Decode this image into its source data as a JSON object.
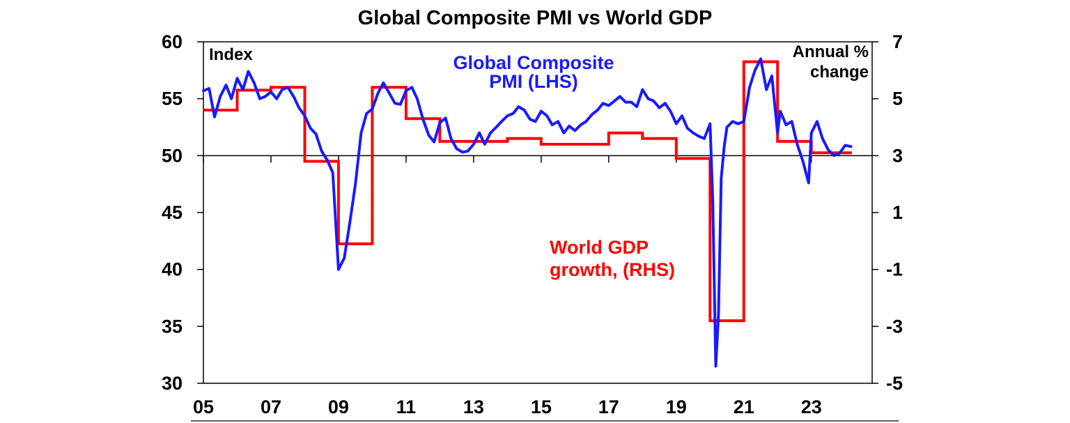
{
  "colors": {
    "pmi": "#1a1aff",
    "gdp": "#ff0000",
    "axis": "#000000"
  },
  "chart_data": {
    "type": "line",
    "title": "Global Composite PMI vs World GDP",
    "left_axis": {
      "label": "Index",
      "ylim": [
        30,
        60
      ],
      "ticks": [
        "60",
        "55",
        "50",
        "45",
        "40",
        "35",
        "30"
      ],
      "tick_values": [
        60,
        55,
        50,
        45,
        40,
        35,
        30
      ]
    },
    "right_axis": {
      "label_line1": "Annual %",
      "label_line2": "change",
      "ylim": [
        -5,
        7
      ],
      "ticks": [
        "7",
        "5",
        "3",
        "1",
        "-1",
        "-3",
        "-5"
      ],
      "tick_values": [
        7,
        5,
        3,
        1,
        -1,
        -3,
        -5
      ]
    },
    "x_axis": {
      "xlim": [
        2005,
        2024.8
      ],
      "ticks": [
        "05",
        "07",
        "09",
        "11",
        "13",
        "15",
        "17",
        "19",
        "21",
        "23"
      ],
      "tick_values": [
        2005,
        2007,
        2009,
        2011,
        2013,
        2015,
        2017,
        2019,
        2021,
        2023
      ]
    },
    "reference_line": 50,
    "series": [
      {
        "name": "Global Composite PMI (LHS)",
        "label_line1": "Global Composite",
        "label_line2": "PMI (LHS)",
        "axis": "left",
        "x": [
          2005.0,
          2005.17,
          2005.33,
          2005.5,
          2005.67,
          2005.83,
          2006.0,
          2006.17,
          2006.33,
          2006.5,
          2006.67,
          2006.83,
          2007.0,
          2007.17,
          2007.33,
          2007.5,
          2007.67,
          2007.83,
          2008.0,
          2008.17,
          2008.33,
          2008.5,
          2008.67,
          2008.83,
          2009.0,
          2009.17,
          2009.33,
          2009.5,
          2009.67,
          2009.83,
          2010.0,
          2010.17,
          2010.33,
          2010.5,
          2010.67,
          2010.83,
          2011.0,
          2011.17,
          2011.33,
          2011.5,
          2011.67,
          2011.83,
          2012.0,
          2012.17,
          2012.33,
          2012.5,
          2012.67,
          2012.83,
          2013.0,
          2013.17,
          2013.33,
          2013.5,
          2013.67,
          2013.83,
          2014.0,
          2014.17,
          2014.33,
          2014.5,
          2014.67,
          2014.83,
          2015.0,
          2015.17,
          2015.33,
          2015.5,
          2015.67,
          2015.83,
          2016.0,
          2016.17,
          2016.33,
          2016.5,
          2016.67,
          2016.83,
          2017.0,
          2017.17,
          2017.33,
          2017.5,
          2017.67,
          2017.83,
          2018.0,
          2018.17,
          2018.33,
          2018.5,
          2018.67,
          2018.83,
          2019.0,
          2019.17,
          2019.33,
          2019.5,
          2019.67,
          2019.83,
          2020.0,
          2020.08,
          2020.17,
          2020.25,
          2020.33,
          2020.42,
          2020.5,
          2020.67,
          2020.83,
          2021.0,
          2021.17,
          2021.33,
          2021.5,
          2021.67,
          2021.83,
          2022.0,
          2022.08,
          2022.25,
          2022.42,
          2022.58,
          2022.75,
          2022.92,
          2023.0,
          2023.17,
          2023.33,
          2023.5,
          2023.67,
          2023.83,
          2024.0,
          2024.17
        ],
        "values": [
          55.7,
          55.9,
          53.4,
          55.2,
          56.2,
          55.0,
          56.8,
          55.8,
          57.4,
          56.4,
          55.0,
          55.2,
          55.6,
          55.0,
          55.8,
          56.0,
          55.2,
          54.2,
          53.5,
          52.4,
          51.9,
          50.4,
          49.6,
          48.5,
          40.0,
          41.0,
          44.0,
          47.5,
          52.0,
          53.7,
          54.1,
          55.5,
          56.4,
          55.5,
          54.6,
          54.5,
          55.7,
          56.0,
          55.0,
          53.2,
          51.8,
          51.2,
          52.9,
          53.3,
          51.5,
          50.6,
          50.3,
          50.4,
          51.0,
          52.0,
          51.0,
          52.0,
          52.5,
          53.0,
          53.5,
          53.7,
          54.3,
          54.0,
          53.2,
          53.0,
          53.9,
          53.5,
          52.7,
          53.0,
          52.0,
          52.6,
          52.2,
          52.7,
          53.0,
          53.6,
          54.0,
          54.6,
          54.4,
          54.8,
          55.2,
          54.7,
          54.7,
          54.3,
          55.8,
          55.0,
          54.8,
          54.2,
          54.6,
          53.9,
          52.8,
          53.5,
          52.4,
          52.0,
          51.7,
          51.5,
          52.8,
          46.0,
          31.5,
          36.0,
          48.0,
          50.8,
          52.5,
          53.0,
          52.8,
          53.0,
          56.0,
          57.5,
          58.5,
          55.8,
          57.0,
          52.0,
          53.9,
          52.7,
          53.0,
          51.0,
          49.5,
          47.6,
          52.0,
          53.0,
          51.5,
          50.5,
          50.0,
          50.2,
          50.9,
          50.8
        ]
      },
      {
        "name": "World GDP growth, (RHS)",
        "label_line1": "World GDP",
        "label_line2": "growth, (RHS)",
        "axis": "right",
        "step": true,
        "x": [
          2005,
          2006,
          2007,
          2008,
          2009,
          2010,
          2011,
          2012,
          2013,
          2014,
          2015,
          2016,
          2017,
          2018,
          2019,
          2020,
          2021,
          2022,
          2023,
          2024
        ],
        "values": [
          4.6,
          5.3,
          5.4,
          2.8,
          -0.1,
          5.4,
          4.3,
          3.5,
          3.5,
          3.6,
          3.4,
          3.4,
          3.8,
          3.6,
          2.9,
          -2.8,
          6.3,
          3.5,
          3.1,
          3.1
        ],
        "end_x": 2024.2
      }
    ]
  }
}
